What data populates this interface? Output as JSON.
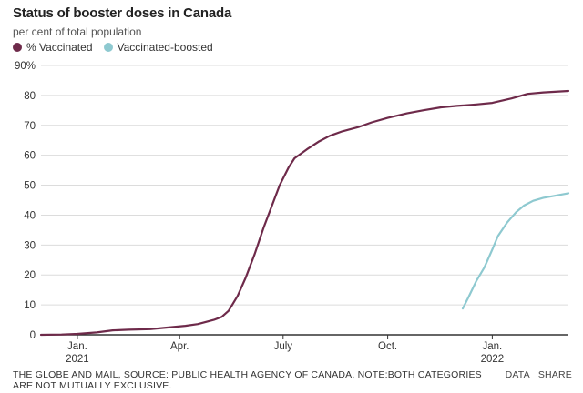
{
  "chart_data": {
    "type": "line",
    "title": "Status of booster doses in Canada",
    "subtitle": "per cent of total population",
    "y_unit_label": "90%",
    "ylim": [
      0,
      90
    ],
    "y_ticks": [
      0,
      10,
      20,
      30,
      40,
      50,
      60,
      70,
      80
    ],
    "x_range": [
      "2020-12-14",
      "2022-03-23"
    ],
    "x_ticks": [
      {
        "date": "2021-01-15",
        "label": "Jan.",
        "sublabel": "2021"
      },
      {
        "date": "2021-04-15",
        "label": "Apr.",
        "sublabel": ""
      },
      {
        "date": "2021-07-15",
        "label": "July",
        "sublabel": ""
      },
      {
        "date": "2021-10-15",
        "label": "Oct.",
        "sublabel": ""
      },
      {
        "date": "2022-01-15",
        "label": "Jan.",
        "sublabel": "2022"
      }
    ],
    "grid": true,
    "legend_position": "top-left",
    "series": [
      {
        "name": "% Vaccinated",
        "color": "#6e2a4a",
        "points": [
          [
            "2020-12-14",
            0
          ],
          [
            "2021-01-01",
            0.1
          ],
          [
            "2021-01-15",
            0.3
          ],
          [
            "2021-02-01",
            0.8
          ],
          [
            "2021-02-15",
            1.5
          ],
          [
            "2021-03-01",
            1.7
          ],
          [
            "2021-03-20",
            1.9
          ],
          [
            "2021-04-01",
            2.3
          ],
          [
            "2021-04-20",
            3.0
          ],
          [
            "2021-05-01",
            3.6
          ],
          [
            "2021-05-15",
            5.0
          ],
          [
            "2021-05-22",
            6.0
          ],
          [
            "2021-05-28",
            8.0
          ],
          [
            "2021-06-05",
            13.0
          ],
          [
            "2021-06-12",
            19.0
          ],
          [
            "2021-06-20",
            27.0
          ],
          [
            "2021-06-28",
            36.0
          ],
          [
            "2021-07-05",
            43.0
          ],
          [
            "2021-07-12",
            50.0
          ],
          [
            "2021-07-20",
            56.0
          ],
          [
            "2021-07-25",
            59.0
          ],
          [
            "2021-08-05",
            62.0
          ],
          [
            "2021-08-15",
            64.5
          ],
          [
            "2021-08-25",
            66.5
          ],
          [
            "2021-09-05",
            68.0
          ],
          [
            "2021-09-20",
            69.5
          ],
          [
            "2021-10-01",
            71.0
          ],
          [
            "2021-10-15",
            72.5
          ],
          [
            "2021-11-01",
            74.0
          ],
          [
            "2021-11-15",
            75.0
          ],
          [
            "2021-12-01",
            76.0
          ],
          [
            "2021-12-15",
            76.5
          ],
          [
            "2022-01-01",
            77.0
          ],
          [
            "2022-01-15",
            77.5
          ],
          [
            "2022-02-01",
            79.0
          ],
          [
            "2022-02-15",
            80.5
          ],
          [
            "2022-03-01",
            81.0
          ],
          [
            "2022-03-23",
            81.5
          ]
        ]
      },
      {
        "name": "Vaccinated-boosted",
        "color": "#8ec9d0",
        "points": [
          [
            "2021-12-20",
            8.8
          ],
          [
            "2021-12-25",
            12.5
          ],
          [
            "2022-01-01",
            18.0
          ],
          [
            "2022-01-08",
            22.5
          ],
          [
            "2022-01-15",
            28.5
          ],
          [
            "2022-01-20",
            33.0
          ],
          [
            "2022-01-28",
            37.5
          ],
          [
            "2022-02-05",
            41.0
          ],
          [
            "2022-02-12",
            43.2
          ],
          [
            "2022-02-20",
            44.8
          ],
          [
            "2022-03-01",
            45.8
          ],
          [
            "2022-03-10",
            46.4
          ],
          [
            "2022-03-23",
            47.3
          ]
        ]
      }
    ]
  },
  "footer": {
    "source": "THE GLOBE AND MAIL, SOURCE: PUBLIC HEALTH AGENCY OF CANADA, NOTE:BOTH CATEGORIES ARE NOT MUTUALLY EXCLUSIVE.",
    "data_link": "DATA",
    "share_link": "SHARE"
  }
}
